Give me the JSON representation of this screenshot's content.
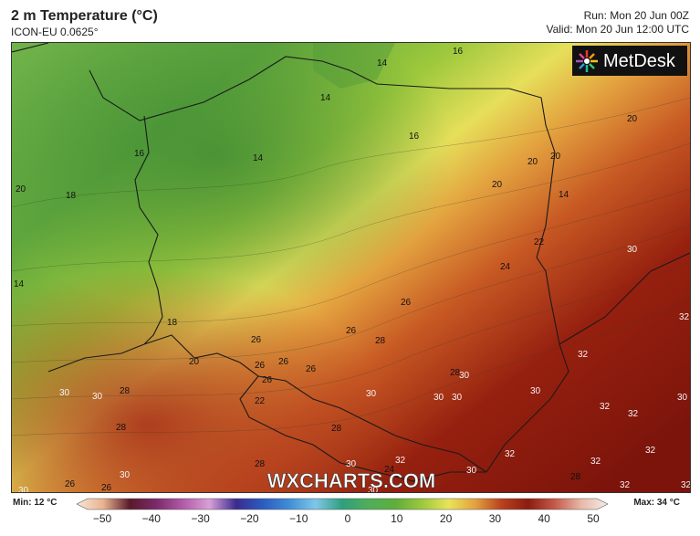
{
  "header": {
    "title": "2 m Temperature (°C)",
    "model": "ICON-EU 0.0625°",
    "run": "Run: Mon 20 Jun 00Z",
    "valid": "Valid: Mon 20 Jun 12:00 UTC"
  },
  "brand": {
    "logo_text": "MetDesk",
    "watermark": "WXCHARTS.COM"
  },
  "legend": {
    "min_label": "Min: 12 °C",
    "max_label": "Max: 34 °C",
    "ticks": [
      "−50",
      "−40",
      "−30",
      "−20",
      "−10",
      "0",
      "10",
      "20",
      "30",
      "40",
      "50"
    ],
    "range": [
      -50,
      50
    ],
    "stops": [
      {
        "t": -50,
        "c": "#f7e7d8"
      },
      {
        "t": -45,
        "c": "#e9b38f"
      },
      {
        "t": -40,
        "c": "#5a1a2a"
      },
      {
        "t": -35,
        "c": "#7b2a6b"
      },
      {
        "t": -30,
        "c": "#b25aa8"
      },
      {
        "t": -25,
        "c": "#d8a0d6"
      },
      {
        "t": -20,
        "c": "#3b2b8f"
      },
      {
        "t": -15,
        "c": "#2c5bbf"
      },
      {
        "t": -10,
        "c": "#3f8ed6"
      },
      {
        "t": -5,
        "c": "#7fc6e8"
      },
      {
        "t": 0,
        "c": "#2f9f7d"
      },
      {
        "t": 5,
        "c": "#4fae5a"
      },
      {
        "t": 10,
        "c": "#5fae3b"
      },
      {
        "t": 15,
        "c": "#9cc83c"
      },
      {
        "t": 20,
        "c": "#e8e35a"
      },
      {
        "t": 25,
        "c": "#e3a23f"
      },
      {
        "t": 30,
        "c": "#b8411e"
      },
      {
        "t": 35,
        "c": "#8a1c10"
      },
      {
        "t": 40,
        "c": "#c45a4a"
      },
      {
        "t": 45,
        "c": "#e8b8a8"
      },
      {
        "t": 50,
        "c": "#f5eee8"
      }
    ]
  },
  "map_labels": [
    "16",
    "14",
    "14",
    "16",
    "20",
    "16",
    "14",
    "20",
    "18",
    "20",
    "20",
    "20",
    "14",
    "22",
    "30",
    "24",
    "14",
    "26",
    "18",
    "26",
    "26",
    "28",
    "32",
    "20",
    "26",
    "26",
    "26",
    "32",
    "30",
    "28",
    "30",
    "26",
    "30",
    "32",
    "28",
    "22",
    "32",
    "30",
    "30",
    "30",
    "30",
    "30",
    "28",
    "28",
    "32",
    "30",
    "30",
    "24",
    "28",
    "32",
    "28",
    "32",
    "32",
    "30",
    "30",
    "26",
    "26",
    "30",
    "32",
    "32"
  ]
}
